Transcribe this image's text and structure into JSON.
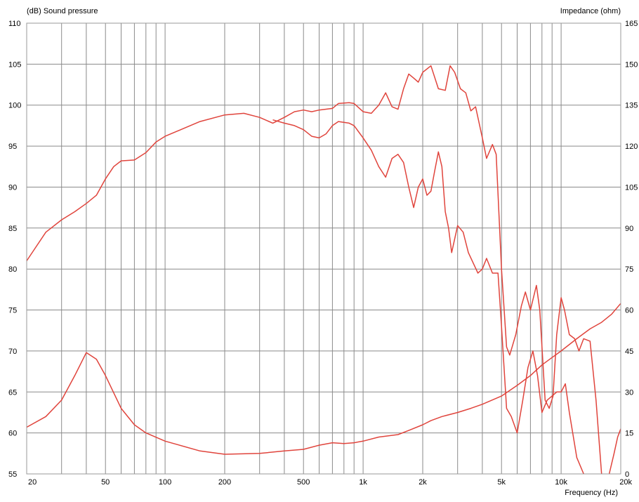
{
  "chart_data": {
    "type": "line",
    "x_scale": "log",
    "xlim": [
      20,
      20000
    ],
    "ylim": [
      55,
      110
    ],
    "y2lim": [
      0,
      165
    ],
    "xlabel": "Frequency  (Hz)",
    "ylabel": "(dB)  Sound pressure",
    "y2label": "Impedance  (ohm)",
    "grid": true,
    "colors": {
      "curve": "#e0443c",
      "grid": "#8a8a8a",
      "frame": "#9a9a9a",
      "background": "#ffffff"
    },
    "x_ticks": [
      {
        "v": 20,
        "label": "20"
      },
      {
        "v": 50,
        "label": "50"
      },
      {
        "v": 100,
        "label": "100"
      },
      {
        "v": 200,
        "label": "200"
      },
      {
        "v": 500,
        "label": "500"
      },
      {
        "v": 1000,
        "label": "1k"
      },
      {
        "v": 2000,
        "label": "2k"
      },
      {
        "v": 5000,
        "label": "5k"
      },
      {
        "v": 10000,
        "label": "10k"
      },
      {
        "v": 20000,
        "label": "20k"
      }
    ],
    "y_ticks": [
      55,
      60,
      65,
      70,
      75,
      80,
      85,
      90,
      95,
      100,
      105,
      110
    ],
    "y2_ticks": [
      {
        "label": "0",
        "at": 55
      },
      {
        "label": "15",
        "at": 60
      },
      {
        "label": "30",
        "at": 65
      },
      {
        "label": "45",
        "at": 70
      },
      {
        "label": "60",
        "at": 75
      },
      {
        "label": "75",
        "at": 80
      },
      {
        "label": "90",
        "at": 85
      },
      {
        "label": "105",
        "at": 90
      },
      {
        "label": "120",
        "at": 95
      },
      {
        "label": "135",
        "at": 100
      },
      {
        "label": "150",
        "at": 105
      },
      {
        "label": "165",
        "at": 110
      }
    ],
    "series": [
      {
        "axis": "left",
        "points": [
          [
            20,
            81
          ],
          [
            22,
            82.5
          ],
          [
            25,
            84.5
          ],
          [
            30,
            86
          ],
          [
            35,
            87
          ],
          [
            40,
            88
          ],
          [
            45,
            89
          ],
          [
            50,
            91
          ],
          [
            55,
            92.5
          ],
          [
            60,
            93.2
          ],
          [
            70,
            93.3
          ],
          [
            80,
            94.2
          ],
          [
            90,
            95.5
          ],
          [
            100,
            96.2
          ],
          [
            120,
            97
          ],
          [
            150,
            98
          ],
          [
            200,
            98.8
          ],
          [
            250,
            99
          ],
          [
            300,
            98.5
          ],
          [
            350,
            97.8
          ],
          [
            400,
            98.5
          ],
          [
            450,
            99.2
          ],
          [
            500,
            99.4
          ],
          [
            550,
            99.2
          ],
          [
            600,
            99.4
          ],
          [
            700,
            99.6
          ],
          [
            750,
            100.2
          ],
          [
            850,
            100.3
          ],
          [
            900,
            100.2
          ],
          [
            1000,
            99.2
          ],
          [
            1100,
            99
          ],
          [
            1200,
            100
          ],
          [
            1300,
            101.5
          ],
          [
            1400,
            99.8
          ],
          [
            1500,
            99.5
          ],
          [
            1600,
            102
          ],
          [
            1700,
            103.8
          ],
          [
            1800,
            103.3
          ],
          [
            1900,
            102.8
          ],
          [
            2000,
            104
          ],
          [
            2200,
            104.8
          ],
          [
            2400,
            102
          ],
          [
            2600,
            101.8
          ],
          [
            2750,
            104.8
          ],
          [
            2900,
            104
          ],
          [
            3100,
            102
          ],
          [
            3300,
            101.5
          ],
          [
            3500,
            99.3
          ],
          [
            3700,
            99.8
          ],
          [
            4000,
            96
          ],
          [
            4200,
            93.5
          ],
          [
            4500,
            95.2
          ],
          [
            4700,
            94
          ],
          [
            5000,
            80
          ],
          [
            5300,
            70.5
          ],
          [
            5500,
            69.5
          ],
          [
            5900,
            72
          ],
          [
            6300,
            75.5
          ],
          [
            6600,
            77.2
          ],
          [
            7000,
            75
          ],
          [
            7500,
            78
          ],
          [
            7800,
            75
          ],
          [
            8300,
            64
          ],
          [
            8700,
            63
          ],
          [
            9100,
            64.5
          ],
          [
            9500,
            72
          ],
          [
            10000,
            76.5
          ],
          [
            10400,
            75
          ],
          [
            11000,
            72
          ],
          [
            11700,
            71.5
          ],
          [
            12300,
            70
          ],
          [
            13000,
            71.5
          ],
          [
            14000,
            71.2
          ],
          [
            15000,
            64
          ],
          [
            16000,
            55
          ]
        ]
      },
      {
        "axis": "left",
        "points": [
          [
            350,
            98.2
          ],
          [
            400,
            97.8
          ],
          [
            450,
            97.5
          ],
          [
            500,
            97
          ],
          [
            550,
            96.2
          ],
          [
            600,
            96
          ],
          [
            650,
            96.5
          ],
          [
            700,
            97.5
          ],
          [
            750,
            98
          ],
          [
            850,
            97.8
          ],
          [
            900,
            97.5
          ],
          [
            1000,
            96
          ],
          [
            1100,
            94.5
          ],
          [
            1200,
            92.5
          ],
          [
            1300,
            91.2
          ],
          [
            1400,
            93.5
          ],
          [
            1500,
            94
          ],
          [
            1600,
            93
          ],
          [
            1700,
            90
          ],
          [
            1800,
            87.5
          ],
          [
            1900,
            90
          ],
          [
            2000,
            91
          ],
          [
            2100,
            89
          ],
          [
            2200,
            89.5
          ],
          [
            2300,
            92
          ],
          [
            2400,
            94.3
          ],
          [
            2500,
            92.5
          ],
          [
            2600,
            87
          ],
          [
            2700,
            85
          ],
          [
            2800,
            82
          ],
          [
            3000,
            85.3
          ],
          [
            3200,
            84.5
          ],
          [
            3400,
            82
          ],
          [
            3800,
            79.5
          ],
          [
            4000,
            80
          ],
          [
            4200,
            81.3
          ],
          [
            4500,
            79.5
          ],
          [
            4800,
            79.5
          ],
          [
            5000,
            73
          ],
          [
            5300,
            63
          ],
          [
            5600,
            62
          ],
          [
            6000,
            60
          ],
          [
            6400,
            64
          ],
          [
            6800,
            68
          ],
          [
            7200,
            70
          ],
          [
            7600,
            67
          ],
          [
            8000,
            62.5
          ],
          [
            8500,
            64
          ],
          [
            9000,
            64.5
          ],
          [
            9500,
            65
          ],
          [
            10000,
            65
          ],
          [
            10500,
            66
          ],
          [
            11000,
            62.5
          ],
          [
            12000,
            57
          ],
          [
            13000,
            55
          ]
        ]
      },
      {
        "axis": "left",
        "points": [
          [
            20,
            60.7
          ],
          [
            25,
            62
          ],
          [
            30,
            64
          ],
          [
            35,
            67
          ],
          [
            40,
            69.8
          ],
          [
            45,
            69
          ],
          [
            50,
            67
          ],
          [
            60,
            63
          ],
          [
            70,
            61
          ],
          [
            80,
            60
          ],
          [
            100,
            59
          ],
          [
            150,
            57.8
          ],
          [
            200,
            57.4
          ],
          [
            300,
            57.5
          ],
          [
            400,
            57.8
          ],
          [
            500,
            58
          ],
          [
            600,
            58.5
          ],
          [
            700,
            58.8
          ],
          [
            800,
            58.7
          ],
          [
            900,
            58.8
          ],
          [
            1000,
            59
          ],
          [
            1200,
            59.5
          ],
          [
            1500,
            59.8
          ],
          [
            1700,
            60.3
          ],
          [
            2000,
            61
          ],
          [
            2200,
            61.5
          ],
          [
            2500,
            62
          ],
          [
            3000,
            62.5
          ],
          [
            3500,
            63
          ],
          [
            4000,
            63.5
          ],
          [
            5000,
            64.5
          ],
          [
            6000,
            65.8
          ],
          [
            7000,
            67
          ],
          [
            8000,
            68.3
          ],
          [
            9000,
            69.2
          ],
          [
            10000,
            70
          ],
          [
            12000,
            71.5
          ],
          [
            14000,
            72.7
          ],
          [
            16000,
            73.5
          ],
          [
            18000,
            74.5
          ],
          [
            20000,
            75.8
          ]
        ]
      },
      {
        "axis": "left",
        "points": [
          [
            17500,
            55
          ],
          [
            18500,
            57.5
          ],
          [
            19300,
            59.5
          ],
          [
            20000,
            60.5
          ]
        ]
      }
    ]
  }
}
